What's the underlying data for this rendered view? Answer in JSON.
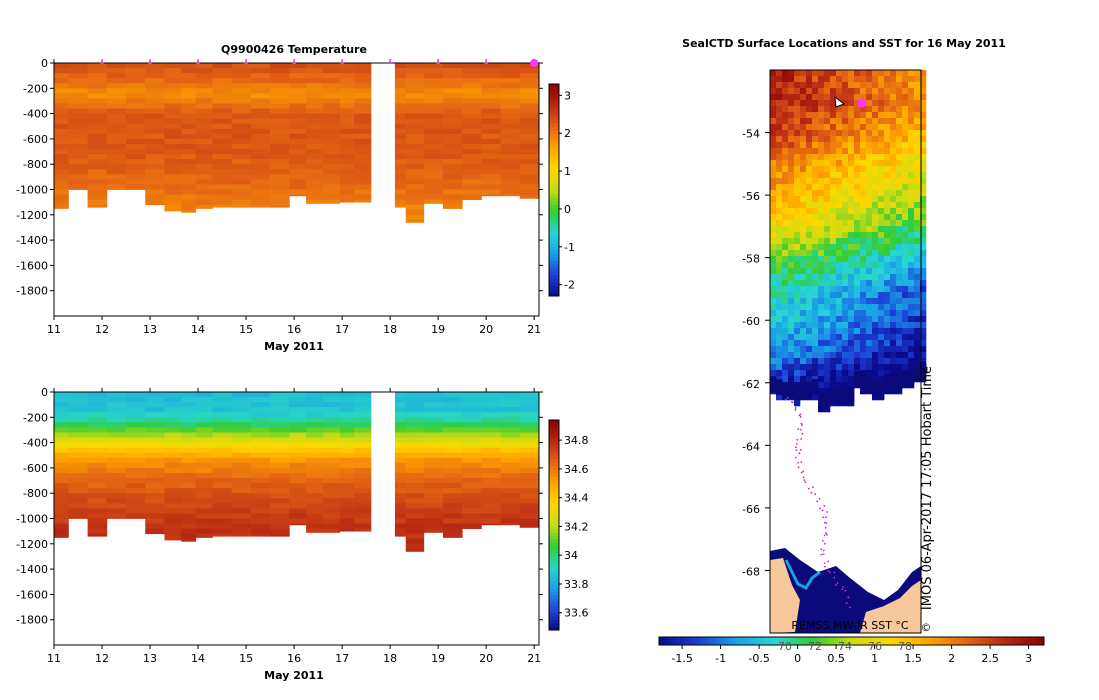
{
  "colors": {
    "temperature_scale": [
      "#0a0a8c",
      "#1d3dd6",
      "#19a0e6",
      "#28d6d6",
      "#33cc33",
      "#c8dc14",
      "#ffd700",
      "#ffa500",
      "#e46414",
      "#b82814",
      "#8b0000"
    ],
    "salinity_scale": [
      "#0a0a8c",
      "#2348d6",
      "#19a0e6",
      "#28d6c8",
      "#33cc33",
      "#c8dc14",
      "#ffd700",
      "#ffa500",
      "#e46414",
      "#b82814",
      "#8b0000"
    ],
    "land": "#f6c89a",
    "ice_edge": "#0a0a7a",
    "track": "#cc22cc",
    "marker": "#ff33ff"
  },
  "chart_data": [
    {
      "type": "heatmap",
      "title": "Q9900426  Temperature",
      "xlabel": "May 2011",
      "ylabel": "",
      "x_range": [
        11,
        21.1
      ],
      "y_range": [
        -2000,
        0
      ],
      "x_ticks": [
        11,
        12,
        13,
        14,
        15,
        16,
        17,
        18,
        19,
        20,
        21
      ],
      "y_ticks": [
        0,
        -200,
        -400,
        -600,
        -800,
        -1000,
        -1200,
        -1400,
        -1600,
        -1800
      ],
      "colorbar": {
        "min": -2.3,
        "max": 3.3,
        "ticks": [
          3,
          2,
          1,
          0,
          -1,
          -2
        ]
      },
      "profile_markers_day": [
        12,
        13,
        14,
        15,
        16,
        17,
        18,
        19,
        20,
        21
      ],
      "gap_days": [
        17.6,
        18.1
      ],
      "profiles_day": [
        11.1,
        11.5,
        11.9,
        12.3,
        12.7,
        13.1,
        13.5,
        13.8,
        14.1,
        14.5,
        14.9,
        15.3,
        15.7,
        16.1,
        16.4,
        16.8,
        17.1,
        17.4,
        18.15,
        18.5,
        18.9,
        19.3,
        19.7,
        20.1,
        20.5,
        20.9
      ],
      "profile_max_depth_m": [
        -1150,
        -1000,
        -1140,
        -1000,
        -1000,
        -1120,
        -1170,
        -1180,
        -1150,
        -1140,
        -1140,
        -1140,
        -1140,
        -1050,
        -1110,
        -1110,
        -1100,
        -1100,
        -1140,
        -1260,
        -1110,
        -1150,
        -1080,
        -1050,
        -1050,
        -1070
      ],
      "value_by_depth_m": [
        [
          0,
          2.4
        ],
        [
          -150,
          2.1
        ],
        [
          -250,
          1.8
        ],
        [
          -400,
          2.3
        ],
        [
          -700,
          2.3
        ],
        [
          -1000,
          2.1
        ],
        [
          -1200,
          1.9
        ]
      ]
    },
    {
      "type": "heatmap",
      "title": "",
      "xlabel": "May 2011",
      "ylabel": "",
      "x_range": [
        11,
        21.1
      ],
      "y_range": [
        -2000,
        0
      ],
      "x_ticks": [
        11,
        12,
        13,
        14,
        15,
        16,
        17,
        18,
        19,
        20,
        21
      ],
      "y_ticks": [
        0,
        -200,
        -400,
        -600,
        -800,
        -1000,
        -1200,
        -1400,
        -1600,
        -1800
      ],
      "colorbar": {
        "min": 33.48,
        "max": 34.94,
        "ticks": [
          34.8,
          34.6,
          34.4,
          34.2,
          34,
          33.8,
          33.6
        ]
      },
      "gap_days": [
        17.6,
        18.1
      ],
      "profiles_day": [
        11.1,
        11.5,
        11.9,
        12.3,
        12.7,
        13.1,
        13.5,
        13.8,
        14.1,
        14.5,
        14.9,
        15.3,
        15.7,
        16.1,
        16.4,
        16.8,
        17.1,
        17.4,
        18.15,
        18.5,
        18.9,
        19.3,
        19.7,
        20.1,
        20.5,
        20.9
      ],
      "profile_max_depth_m": [
        -1150,
        -1000,
        -1140,
        -1000,
        -1000,
        -1120,
        -1170,
        -1180,
        -1150,
        -1140,
        -1140,
        -1140,
        -1140,
        -1050,
        -1110,
        -1110,
        -1100,
        -1100,
        -1140,
        -1260,
        -1110,
        -1150,
        -1080,
        -1050,
        -1050,
        -1070
      ],
      "value_by_depth_m": [
        [
          0,
          33.85
        ],
        [
          -150,
          33.87
        ],
        [
          -250,
          34.0
        ],
        [
          -350,
          34.2
        ],
        [
          -450,
          34.4
        ],
        [
          -550,
          34.55
        ],
        [
          -700,
          34.65
        ],
        [
          -900,
          34.72
        ],
        [
          -1100,
          34.78
        ]
      ]
    },
    {
      "type": "heatmap",
      "title": "SealCTD Surface Locations and SST for 16 May 2011",
      "xlabel": "",
      "ylabel": "",
      "lat_range": [
        -70,
        -52
      ],
      "y_ticks": [
        -54,
        -56,
        -58,
        -60,
        -62,
        -64,
        -66,
        -68
      ],
      "annotation": "IMOS 06-Apr-2017 17:05 Hobart Time",
      "source_label": "REMSS MW-IR SST °C",
      "credit_symbol": "©",
      "colorbar": {
        "min": -1.8,
        "max": 3.2,
        "ticks": [
          -1.5,
          -1,
          -0.5,
          0,
          0.5,
          1,
          1.5,
          2,
          2.5,
          3
        ]
      },
      "sst_band_by_lat": [
        [
          -53,
          2.8
        ],
        [
          -54,
          2.5
        ],
        [
          -55,
          2.0
        ],
        [
          -56,
          1.6
        ],
        [
          -57,
          1.1
        ],
        [
          -58,
          0.4
        ],
        [
          -59,
          -0.2
        ],
        [
          -60,
          -0.4
        ],
        [
          -61,
          -0.8
        ],
        [
          -62,
          -1.6
        ]
      ]
    }
  ],
  "underlay_ticks": [
    "70",
    "72",
    "74",
    "76",
    "78"
  ]
}
